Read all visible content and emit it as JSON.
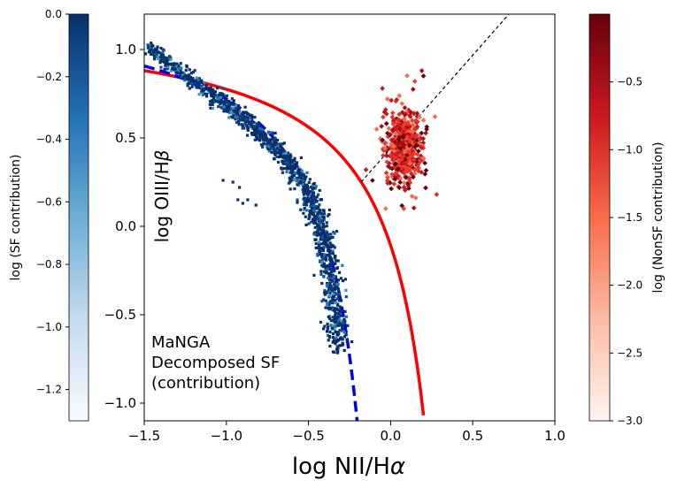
{
  "chart_data": {
    "type": "scatter",
    "xlabel": "log NII/H",
    "xlabel_greek": "α",
    "ylabel": "log OIII/H",
    "ylabel_greek": "β",
    "xlim": [
      -1.5,
      1.0
    ],
    "ylim": [
      -1.1,
      1.2
    ],
    "xticks": [
      -1.5,
      -1.0,
      -0.5,
      0.0,
      0.5,
      1.0
    ],
    "xtick_labels": [
      "−1.5",
      "−1.0",
      "−0.5",
      "0.0",
      "0.5",
      "1.0"
    ],
    "yticks": [
      -1.0,
      -0.5,
      0.0,
      0.5,
      1.0
    ],
    "ytick_labels": [
      "−1.0",
      "−0.5",
      "0.0",
      "0.5",
      "1.0"
    ],
    "annotation": [
      "MaNGA",
      "Decomposed SF",
      "(contribution)"
    ],
    "curves": [
      {
        "name": "kewley-maximum-starburst",
        "color": "#ff0000",
        "style": "solid",
        "formula": "0.61/(x-0.47)+1.19",
        "x_max": 0.2
      },
      {
        "name": "kauffmann-demarcation",
        "color": "#0000ee",
        "style": "dashed",
        "formula": "0.61/(x-0.05)+1.3",
        "x_max": -0.18
      },
      {
        "name": "seyfert-liner-line",
        "color": "#000000",
        "style": "dashed",
        "x": [
          -0.18,
          0.72
        ],
        "y": [
          0.25,
          1.2
        ]
      }
    ],
    "series": [
      {
        "name": "SF contribution",
        "color": "#08306b",
        "ridge": [
          [
            -1.47,
            1.02
          ],
          [
            -1.3,
            0.88
          ],
          [
            -1.1,
            0.76
          ],
          [
            -0.95,
            0.65
          ],
          [
            -0.82,
            0.55
          ],
          [
            -0.7,
            0.45
          ],
          [
            -0.6,
            0.33
          ],
          [
            -0.5,
            0.18
          ],
          [
            -0.45,
            0.05
          ],
          [
            -0.4,
            -0.1
          ],
          [
            -0.36,
            -0.3
          ],
          [
            -0.33,
            -0.5
          ],
          [
            -0.32,
            -0.68
          ]
        ],
        "outliers": [
          [
            -1.45,
            1.02
          ],
          [
            -1.43,
            1.0
          ],
          [
            -1.3,
            0.87
          ],
          [
            -1.02,
            0.26
          ],
          [
            -0.96,
            0.25
          ],
          [
            -0.92,
            0.22
          ],
          [
            -0.93,
            0.15
          ],
          [
            -0.9,
            0.13
          ],
          [
            -0.87,
            0.15
          ],
          [
            -0.82,
            0.12
          ],
          [
            -0.57,
            0.36
          ],
          [
            -0.32,
            -0.69
          ]
        ]
      },
      {
        "name": "NonSF contribution",
        "color": "#d7301f",
        "center": [
          0.08,
          0.45
        ],
        "spread": [
          0.07,
          0.14
        ],
        "outliers": [
          [
            -0.05,
            0.78
          ],
          [
            -0.02,
            0.72
          ],
          [
            0.19,
            0.88
          ],
          [
            0.2,
            0.85
          ],
          [
            -0.15,
            0.32
          ],
          [
            -0.03,
            0.1
          ],
          [
            0.08,
            0.1
          ],
          [
            0.28,
            0.18
          ],
          [
            0.15,
            0.55
          ],
          [
            0.2,
            0.6
          ],
          [
            0.27,
            0.62
          ]
        ]
      }
    ],
    "colorbars": [
      {
        "name": "sf",
        "label": "log (SF contribution)",
        "cmap": "Blues",
        "range": [
          -1.3,
          0.0
        ],
        "ticks": [
          0.0,
          -0.2,
          -0.4,
          -0.6,
          -0.8,
          -1.0,
          -1.2
        ],
        "tick_labels": [
          "0.0",
          "−0.2",
          "−0.4",
          "−0.6",
          "−0.8",
          "−1.0",
          "−1.2"
        ]
      },
      {
        "name": "nonsf",
        "label": "log (NonSF contribution)",
        "cmap": "Reds",
        "range": [
          -3.0,
          0.0
        ],
        "ticks": [
          -0.5,
          -1.0,
          -1.5,
          -2.0,
          -2.5,
          -3.0
        ],
        "tick_labels": [
          "−0.5",
          "−1.0",
          "−1.5",
          "−2.0",
          "−2.5",
          "−3.0"
        ]
      }
    ]
  }
}
